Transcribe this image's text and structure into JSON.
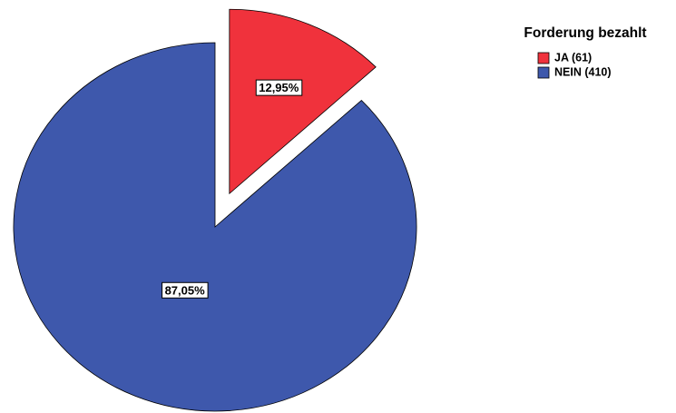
{
  "chart_data": {
    "type": "pie",
    "legend_title": "Forderung bezahlt",
    "categories": [
      "JA (61)",
      "NEIN (410)"
    ],
    "values": [
      12.95,
      87.05
    ],
    "value_labels": [
      "12,95%",
      "87,05%"
    ],
    "colors": [
      "#f0323c",
      "#3e58ac"
    ],
    "explode": [
      true,
      false
    ],
    "legend": "top-right"
  }
}
